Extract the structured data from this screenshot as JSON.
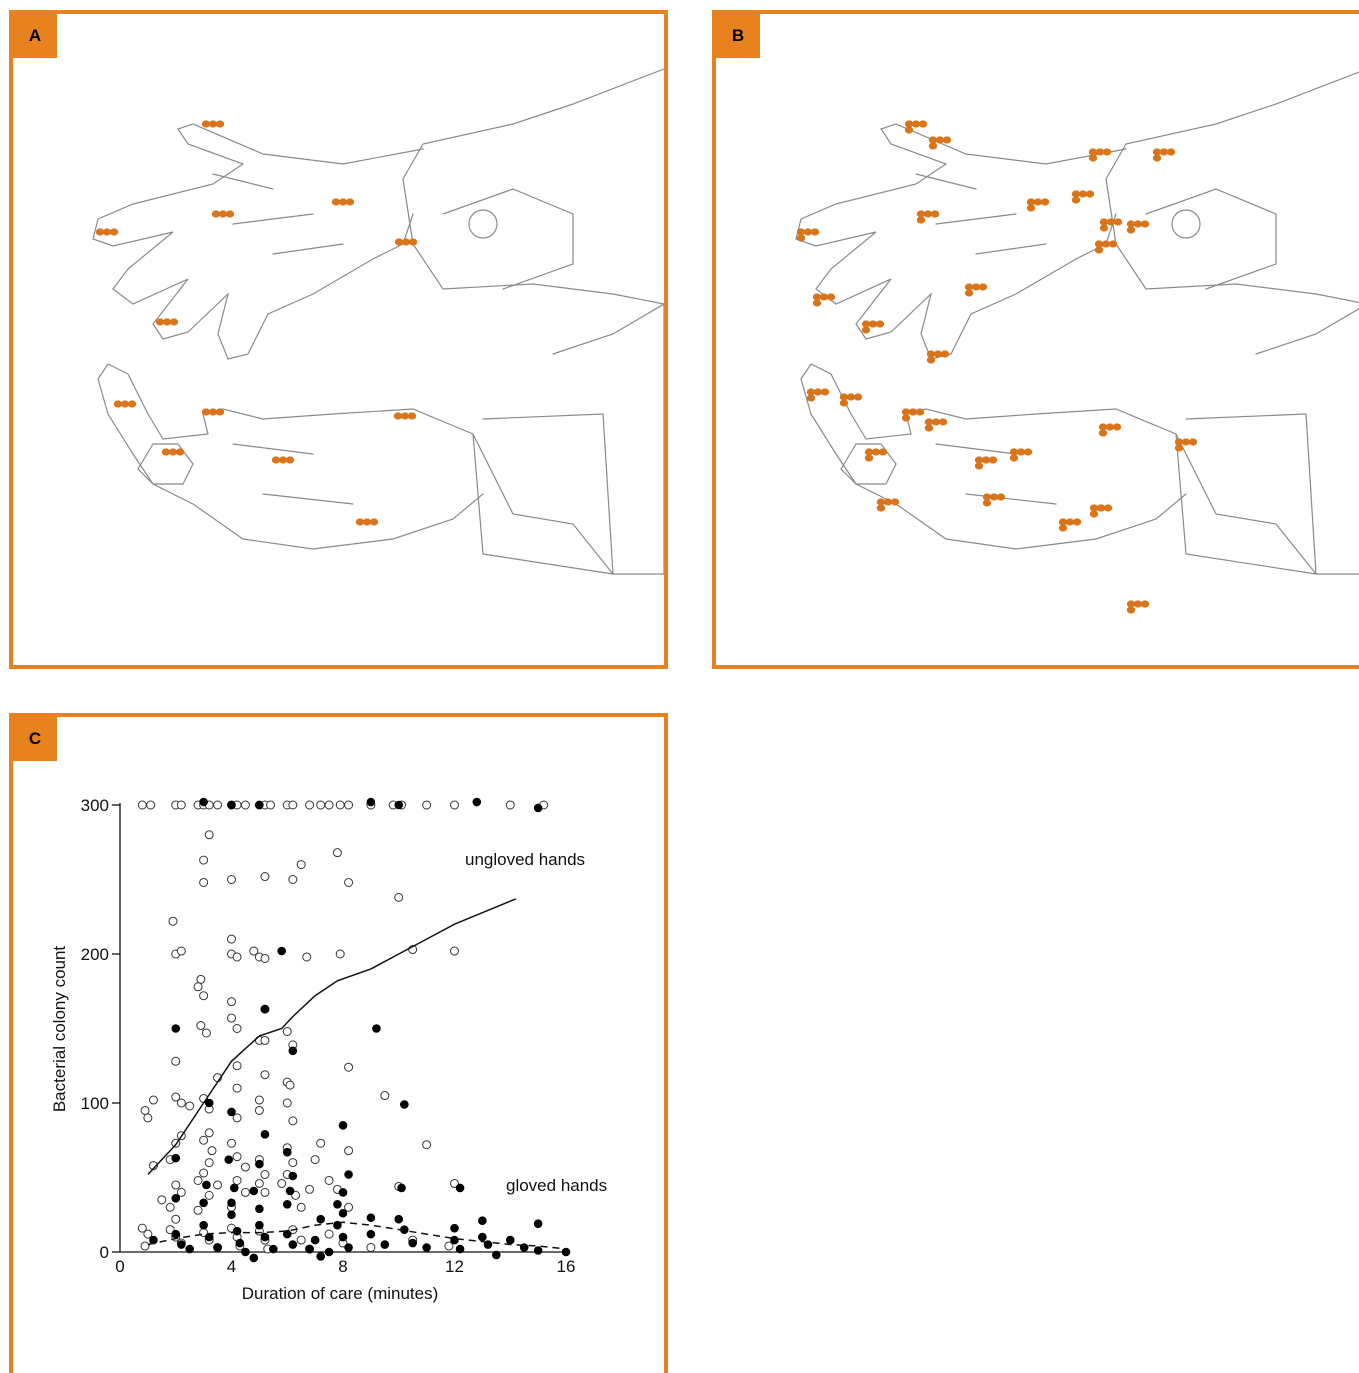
{
  "panels": {
    "a": {
      "label": "A"
    },
    "b": {
      "label": "B"
    },
    "c": {
      "label": "C"
    }
  },
  "colors": {
    "accent": "#e8821e",
    "contamination": "#d9741a",
    "sketch": "#8a8a8a"
  },
  "illustrations": {
    "a": {
      "description_icon": "hands-sketch-icon",
      "contamination_marks": "few"
    },
    "b": {
      "description_icon": "hands-sketch-icon",
      "contamination_marks": "many"
    }
  },
  "chart_data": {
    "type": "scatter",
    "xlabel": "Duration of care (minutes)",
    "ylabel": "Bacterial colony count",
    "xlim": [
      0,
      16
    ],
    "ylim": [
      0,
      300
    ],
    "xticks": [
      "0",
      "4",
      "8",
      "12",
      "16"
    ],
    "yticks": [
      "0",
      "100",
      "200",
      "300"
    ],
    "grid": false,
    "annotations": [
      "ungloved hands",
      "gloved hands"
    ],
    "series": [
      {
        "name": "ungloved hands",
        "marker": "open-circle",
        "points": [
          [
            0.8,
            300
          ],
          [
            1.1,
            300
          ],
          [
            2,
            300
          ],
          [
            2.2,
            300
          ],
          [
            2.8,
            300
          ],
          [
            3,
            300
          ],
          [
            3.2,
            300
          ],
          [
            3.5,
            300
          ],
          [
            4,
            300
          ],
          [
            4.2,
            300
          ],
          [
            4.5,
            300
          ],
          [
            5,
            300
          ],
          [
            5.2,
            300
          ],
          [
            5.4,
            300
          ],
          [
            6,
            300
          ],
          [
            6.2,
            300
          ],
          [
            6.8,
            300
          ],
          [
            7.2,
            300
          ],
          [
            7.5,
            300
          ],
          [
            7.9,
            300
          ],
          [
            8.2,
            300
          ],
          [
            9,
            300
          ],
          [
            9.8,
            300
          ],
          [
            10.1,
            300
          ],
          [
            11,
            300
          ],
          [
            12,
            300
          ],
          [
            14,
            300
          ],
          [
            15.2,
            300
          ],
          [
            3.2,
            280
          ],
          [
            7.8,
            268
          ],
          [
            3,
            263
          ],
          [
            6.5,
            260
          ],
          [
            3,
            248
          ],
          [
            4,
            250
          ],
          [
            5.2,
            252
          ],
          [
            6.2,
            250
          ],
          [
            8.2,
            248
          ],
          [
            10,
            238
          ],
          [
            1.9,
            222
          ],
          [
            4,
            210
          ],
          [
            2,
            200
          ],
          [
            2.2,
            202
          ],
          [
            4,
            200
          ],
          [
            4.2,
            198
          ],
          [
            4.8,
            202
          ],
          [
            5,
            198
          ],
          [
            5.2,
            197
          ],
          [
            6.7,
            198
          ],
          [
            7.9,
            200
          ],
          [
            10.5,
            203
          ],
          [
            12,
            202
          ],
          [
            2.9,
            183
          ],
          [
            2.8,
            178
          ],
          [
            3,
            172
          ],
          [
            4,
            168
          ],
          [
            4,
            157
          ],
          [
            2.9,
            152
          ],
          [
            4.2,
            150
          ],
          [
            5.2,
            163
          ],
          [
            3.1,
            147
          ],
          [
            5,
            142
          ],
          [
            6,
            148
          ],
          [
            6.2,
            139
          ],
          [
            2,
            128
          ],
          [
            4.2,
            125
          ],
          [
            5.2,
            142
          ],
          [
            0.9,
            95
          ],
          [
            1,
            90
          ],
          [
            1.2,
            102
          ],
          [
            2,
            104
          ],
          [
            2.2,
            100
          ],
          [
            2.5,
            98
          ],
          [
            3.2,
            96
          ],
          [
            3,
            103
          ],
          [
            3.5,
            117
          ],
          [
            4.2,
            90
          ],
          [
            4.2,
            110
          ],
          [
            5,
            102
          ],
          [
            5,
            95
          ],
          [
            5.2,
            119
          ],
          [
            6,
            114
          ],
          [
            6.1,
            112
          ],
          [
            6,
            100
          ],
          [
            6.2,
            88
          ],
          [
            8.2,
            124
          ],
          [
            9.5,
            105
          ],
          [
            2,
            73
          ],
          [
            2.2,
            78
          ],
          [
            1.2,
            58
          ],
          [
            1.8,
            62
          ],
          [
            3,
            75
          ],
          [
            3.2,
            80
          ],
          [
            3.3,
            68
          ],
          [
            3.2,
            60
          ],
          [
            3,
            53
          ],
          [
            2.8,
            48
          ],
          [
            2,
            45
          ],
          [
            2.2,
            40
          ],
          [
            1.5,
            35
          ],
          [
            1.8,
            30
          ],
          [
            2,
            22
          ],
          [
            2.8,
            28
          ],
          [
            3.2,
            38
          ],
          [
            3.5,
            45
          ],
          [
            4,
            73
          ],
          [
            4.2,
            64
          ],
          [
            4.5,
            57
          ],
          [
            4.2,
            48
          ],
          [
            4.5,
            40
          ],
          [
            4,
            30
          ],
          [
            5,
            62
          ],
          [
            5.2,
            52
          ],
          [
            5,
            46
          ],
          [
            5.2,
            40
          ],
          [
            6,
            70
          ],
          [
            6.2,
            60
          ],
          [
            6,
            52
          ],
          [
            5.8,
            46
          ],
          [
            6.3,
            38
          ],
          [
            6.5,
            30
          ],
          [
            7,
            62
          ],
          [
            7.2,
            73
          ],
          [
            7.5,
            48
          ],
          [
            7.8,
            42
          ],
          [
            8.2,
            68
          ],
          [
            8.2,
            30
          ],
          [
            10,
            44
          ],
          [
            11,
            72
          ],
          [
            12,
            46
          ],
          [
            6.8,
            42
          ],
          [
            0.8,
            16
          ],
          [
            1,
            12
          ],
          [
            0.9,
            4
          ],
          [
            1.8,
            15
          ],
          [
            2,
            10
          ],
          [
            2.2,
            6
          ],
          [
            3,
            13
          ],
          [
            3.2,
            8
          ],
          [
            3.5,
            3
          ],
          [
            4,
            16
          ],
          [
            4.2,
            10
          ],
          [
            4.3,
            4
          ],
          [
            5,
            14
          ],
          [
            5.2,
            8
          ],
          [
            5.3,
            2
          ],
          [
            6.2,
            15
          ],
          [
            6.5,
            8
          ],
          [
            6.8,
            2
          ],
          [
            7.5,
            12
          ],
          [
            8,
            6
          ],
          [
            9,
            3
          ],
          [
            10.5,
            8
          ],
          [
            11.8,
            4
          ]
        ]
      },
      {
        "name": "gloved hands",
        "marker": "filled-circle",
        "points": [
          [
            3,
            302
          ],
          [
            4,
            300
          ],
          [
            5,
            300
          ],
          [
            9,
            302
          ],
          [
            10,
            300
          ],
          [
            12.8,
            302
          ],
          [
            15,
            298
          ],
          [
            5.8,
            202
          ],
          [
            5.2,
            163
          ],
          [
            2,
            150
          ],
          [
            3.2,
            100
          ],
          [
            9.2,
            150
          ],
          [
            6.2,
            135
          ],
          [
            4,
            94
          ],
          [
            10.2,
            99
          ],
          [
            8,
            85
          ],
          [
            5.2,
            79
          ],
          [
            6,
            67
          ],
          [
            2,
            63
          ],
          [
            3.9,
            62
          ],
          [
            5,
            59
          ],
          [
            6.2,
            51
          ],
          [
            8.2,
            52
          ],
          [
            3.1,
            45
          ],
          [
            4.1,
            43
          ],
          [
            4.8,
            41
          ],
          [
            6.1,
            41
          ],
          [
            8,
            40
          ],
          [
            10.1,
            43
          ],
          [
            12.2,
            43
          ],
          [
            2,
            36
          ],
          [
            3,
            33
          ],
          [
            4,
            33
          ],
          [
            5,
            29
          ],
          [
            6,
            32
          ],
          [
            7.8,
            32
          ],
          [
            8,
            26
          ],
          [
            9,
            23
          ],
          [
            7.2,
            22
          ],
          [
            10,
            22
          ],
          [
            12,
            16
          ],
          [
            13,
            21
          ],
          [
            15,
            19
          ],
          [
            7.8,
            18
          ],
          [
            1.2,
            8
          ],
          [
            2,
            12
          ],
          [
            2.2,
            5
          ],
          [
            2.5,
            2
          ],
          [
            3,
            18
          ],
          [
            3.2,
            10
          ],
          [
            3.5,
            3
          ],
          [
            4,
            25
          ],
          [
            4.2,
            14
          ],
          [
            4.3,
            6
          ],
          [
            4.5,
            0
          ],
          [
            5,
            18
          ],
          [
            5.2,
            10
          ],
          [
            5.5,
            2
          ],
          [
            6,
            12
          ],
          [
            6.2,
            5
          ],
          [
            6.8,
            2
          ],
          [
            7,
            8
          ],
          [
            7.5,
            0
          ],
          [
            8,
            10
          ],
          [
            8.2,
            3
          ],
          [
            9,
            12
          ],
          [
            9.5,
            5
          ],
          [
            10.2,
            15
          ],
          [
            10.5,
            6
          ],
          [
            11,
            3
          ],
          [
            12,
            8
          ],
          [
            12.2,
            2
          ],
          [
            13,
            10
          ],
          [
            13.2,
            5
          ],
          [
            14,
            8
          ],
          [
            14.5,
            3
          ],
          [
            15,
            1
          ],
          [
            16,
            0
          ],
          [
            13.5,
            -2
          ],
          [
            4.8,
            -4
          ],
          [
            7.2,
            -3
          ]
        ]
      }
    ],
    "trend_lines": [
      {
        "name": "ungloved hands",
        "style": "solid",
        "points": [
          [
            1,
            52
          ],
          [
            2,
            72
          ],
          [
            3,
            100
          ],
          [
            4,
            128
          ],
          [
            5,
            145
          ],
          [
            5.8,
            150
          ],
          [
            6.2,
            158
          ],
          [
            7,
            172
          ],
          [
            7.8,
            182
          ],
          [
            9,
            190
          ],
          [
            10,
            200
          ],
          [
            11,
            210
          ],
          [
            12,
            220
          ],
          [
            14.2,
            237
          ]
        ]
      },
      {
        "name": "gloved hands",
        "style": "dashed",
        "points": [
          [
            1,
            5
          ],
          [
            2,
            9
          ],
          [
            3,
            12
          ],
          [
            4,
            13
          ],
          [
            5,
            13
          ],
          [
            6,
            14
          ],
          [
            7,
            18
          ],
          [
            8,
            20
          ],
          [
            9,
            18
          ],
          [
            10,
            15
          ],
          [
            11,
            12
          ],
          [
            12,
            9
          ],
          [
            13,
            7
          ],
          [
            14,
            5
          ],
          [
            15,
            4
          ],
          [
            16,
            2
          ]
        ]
      }
    ]
  }
}
